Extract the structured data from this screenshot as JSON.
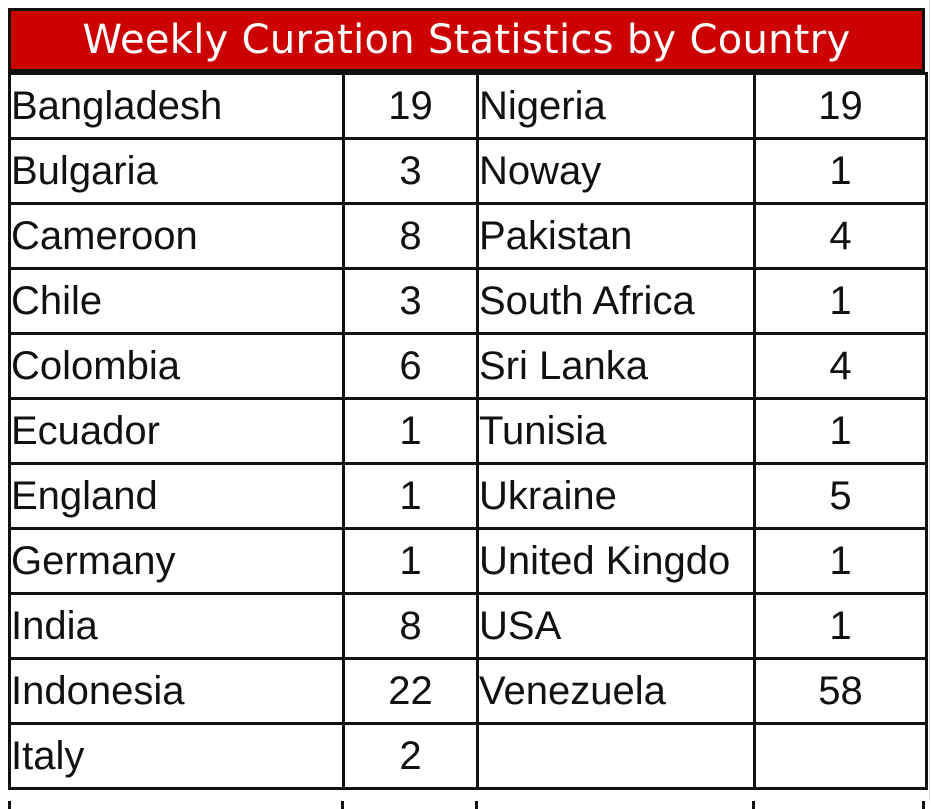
{
  "title": "Weekly Curation Statistics by Country",
  "rows": [
    {
      "left_country": "Bangladesh",
      "left_count": "19",
      "right_country": "Nigeria",
      "right_count": "19"
    },
    {
      "left_country": "Bulgaria",
      "left_count": "3",
      "right_country": "Noway",
      "right_count": "1"
    },
    {
      "left_country": "Cameroon",
      "left_count": "8",
      "right_country": "Pakistan",
      "right_count": "4"
    },
    {
      "left_country": "Chile",
      "left_count": "3",
      "right_country": "South Africa",
      "right_count": "1"
    },
    {
      "left_country": "Colombia",
      "left_count": "6",
      "right_country": "Sri Lanka",
      "right_count": "4"
    },
    {
      "left_country": "Ecuador",
      "left_count": "1",
      "right_country": "Tunisia",
      "right_count": "1"
    },
    {
      "left_country": "England",
      "left_count": "1",
      "right_country": "Ukraine",
      "right_count": "5"
    },
    {
      "left_country": "Germany",
      "left_count": "1",
      "right_country": "United Kingdo",
      "right_count": "1"
    },
    {
      "left_country": "India",
      "left_count": "8",
      "right_country": "USA",
      "right_count": "1"
    },
    {
      "left_country": "Indonesia",
      "left_count": "22",
      "right_country": "Venezuela",
      "right_count": "58"
    },
    {
      "left_country": "Italy",
      "left_count": "2",
      "right_country": "",
      "right_count": ""
    }
  ]
}
